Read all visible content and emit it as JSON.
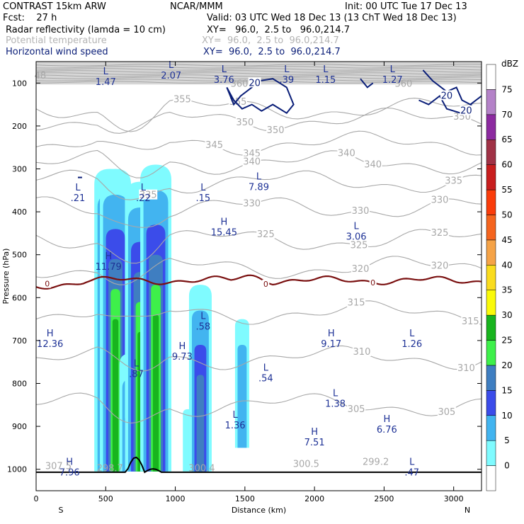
{
  "header": {
    "title": "CONTRAST 15km ARW",
    "model": "NCAR/MMM",
    "init": "Init: 00 UTC Tue 17 Dec 13",
    "forecast": "Fcst:    27 h",
    "valid": "Valid: 03 UTC Wed 18 Dec 13 (13 ChT Wed 18 Dec 13)",
    "fields": [
      {
        "name": "Radar reflectivity (lamda = 10 cm)",
        "xy": "XY=   96.0,  2.5 to   96.0,214.7",
        "style": "black"
      },
      {
        "name": "Potential temperature",
        "xy": "XY=  96.0,  2.5 to  96.0,214.7",
        "style": "gray"
      },
      {
        "name": "Horizontal wind speed",
        "xy": "XY=  96.0,  2.5 to  96.0,214.7",
        "style": "navy"
      }
    ]
  },
  "colors": {
    "theta": "#a8a8a8",
    "freezing": "#7a1010",
    "wind": "#0a1e78",
    "labels": "#1e3296",
    "terrain": "#000000"
  },
  "chart_data": {
    "type": "cross-section",
    "xlabel": "Distance (km)",
    "ylabel": "Pressure (hPa)",
    "xlim": [
      0,
      3200
    ],
    "ylim": [
      1050,
      50
    ],
    "x_ticks": [
      0,
      500,
      1000,
      1500,
      2000,
      2500,
      3000
    ],
    "x_tick_labels": [
      "0",
      "500",
      "1000",
      "1500",
      "2000",
      "2500",
      "3000"
    ],
    "y_ticks": [
      100,
      200,
      300,
      400,
      500,
      600,
      700,
      800,
      900,
      1000
    ],
    "y_tick_labels": [
      "100",
      "200",
      "300",
      "400",
      "500",
      "600",
      "700",
      "800",
      "900",
      "1000"
    ],
    "end_labels": {
      "left": "S",
      "right": "N"
    },
    "colorbar": {
      "title": "dBZ",
      "levels": [
        "0",
        "5",
        "10",
        "15",
        "20",
        "25",
        "30",
        "35",
        "40",
        "45",
        "50",
        "55",
        "60",
        "65",
        "70",
        "75"
      ],
      "colors": [
        "#ffffff",
        "#7ffbff",
        "#42b4f0",
        "#3b4cea",
        "#3f7ec1",
        "#3ef04a",
        "#18b41e",
        "#fafa0a",
        "#fadc1e",
        "#f5a347",
        "#f5641e",
        "#fa3c0a",
        "#c81e1e",
        "#a03246",
        "#8c2aa0",
        "#b482c8",
        "#ffffff"
      ]
    },
    "isentropes": [
      {
        "value": "355",
        "label_x": [
          1050,
          1450
        ]
      },
      {
        "value": "350",
        "label_x": [
          1500,
          1720,
          3060
        ]
      },
      {
        "value": "345",
        "label_x": [
          1280,
          1550
        ]
      },
      {
        "value": "340",
        "label_x": [
          1550,
          2230,
          2420
        ]
      },
      {
        "value": "335",
        "label_x": [
          3000,
          805
        ]
      },
      {
        "value": "330",
        "label_x": [
          1550,
          2330,
          2900
        ]
      },
      {
        "value": "325",
        "label_x": [
          1650,
          2320,
          2900
        ]
      },
      {
        "value": "320",
        "label_x": [
          2330,
          2900
        ]
      },
      {
        "value": "315",
        "label_x": [
          2300,
          3120
        ]
      },
      {
        "value": "310",
        "label_x": [
          2340,
          3090
        ]
      },
      {
        "value": "305",
        "label_x": [
          2300,
          2950
        ]
      }
    ],
    "freezing_level": {
      "label": "0",
      "approx_pressure": 560
    },
    "wind_contours": [
      {
        "value": "20",
        "label_x": [
          1570,
          2950,
          3090
        ]
      }
    ],
    "top_isotherm_label": {
      "value": "360",
      "label_x": [
        1460,
        2640
      ]
    },
    "extrema": [
      {
        "type": "L",
        "value": ".21",
        "x": 300,
        "p": 350
      },
      {
        "type": "L",
        "value": ".22",
        "x": 770,
        "p": 350
      },
      {
        "type": "L",
        "value": ".15",
        "x": 1200,
        "p": 350
      },
      {
        "type": "L",
        "value": "7.89",
        "x": 1600,
        "p": 325
      },
      {
        "type": "H",
        "value": "11.79",
        "x": 520,
        "p": 510
      },
      {
        "type": "H",
        "value": "15.45",
        "x": 1350,
        "p": 430
      },
      {
        "type": "L",
        "value": "3.06",
        "x": 2300,
        "p": 440
      },
      {
        "type": "H",
        "value": "12.36",
        "x": 100,
        "p": 690
      },
      {
        "type": "L",
        "value": ".58",
        "x": 1200,
        "p": 650
      },
      {
        "type": "H",
        "value": "9.73",
        "x": 1050,
        "p": 720
      },
      {
        "type": "L",
        "value": ".87",
        "x": 720,
        "p": 760
      },
      {
        "type": "L",
        "value": ".54",
        "x": 1650,
        "p": 770
      },
      {
        "type": "H",
        "value": "9.17",
        "x": 2120,
        "p": 690
      },
      {
        "type": "L",
        "value": "1.26",
        "x": 2700,
        "p": 690
      },
      {
        "type": "L",
        "value": "1.38",
        "x": 2150,
        "p": 830
      },
      {
        "type": "L",
        "value": "1.36",
        "x": 1430,
        "p": 880
      },
      {
        "type": "H",
        "value": "7.51",
        "x": 2000,
        "p": 920
      },
      {
        "type": "H",
        "value": "6.76",
        "x": 2520,
        "p": 890
      },
      {
        "type": "H",
        "value": "7.96",
        "x": 240,
        "p": 990
      },
      {
        "type": "L",
        "value": ".47",
        "x": 2700,
        "p": 990
      },
      {
        "type": "L",
        "value": "1.47",
        "x": 500,
        "p": 80
      },
      {
        "type": "L",
        "value": "2.07",
        "x": 970,
        "p": 65
      },
      {
        "type": "L",
        "value": "3.76",
        "x": 1350,
        "p": 75
      },
      {
        "type": "L",
        "value": ".39",
        "x": 1800,
        "p": 75
      },
      {
        "type": "L",
        "value": "1.15",
        "x": 2080,
        "p": 75
      },
      {
        "type": "L",
        "value": "1.27",
        "x": 2560,
        "p": 75
      }
    ],
    "faint_labels": [
      {
        "value": "48",
        "x": 30,
        "p": 90
      },
      {
        "value": "307.5",
        "x": 160,
        "p": 1000
      },
      {
        "value": "298.7",
        "x": 530,
        "p": 1005
      },
      {
        "value": "300.4",
        "x": 1190,
        "p": 1005
      },
      {
        "value": "300.5",
        "x": 1940,
        "p": 995
      },
      {
        "value": "299.2",
        "x": 2440,
        "p": 990
      }
    ],
    "reflectivity_columns": [
      {
        "x": 530,
        "top": 300,
        "bottom": 1005,
        "max_dbz": 30
      },
      {
        "x": 570,
        "top": 300,
        "bottom": 1005,
        "max_dbz": 30
      },
      {
        "x": 680,
        "top": 730,
        "bottom": 1005,
        "max_dbz": 20
      },
      {
        "x": 750,
        "top": 330,
        "bottom": 1005,
        "max_dbz": 30
      },
      {
        "x": 860,
        "top": 290,
        "bottom": 1005,
        "max_dbz": 30
      },
      {
        "x": 1090,
        "top": 860,
        "bottom": 1005,
        "max_dbz": 5
      },
      {
        "x": 1180,
        "top": 570,
        "bottom": 1005,
        "max_dbz": 20
      },
      {
        "x": 1480,
        "top": 650,
        "bottom": 950,
        "max_dbz": 10
      }
    ]
  }
}
